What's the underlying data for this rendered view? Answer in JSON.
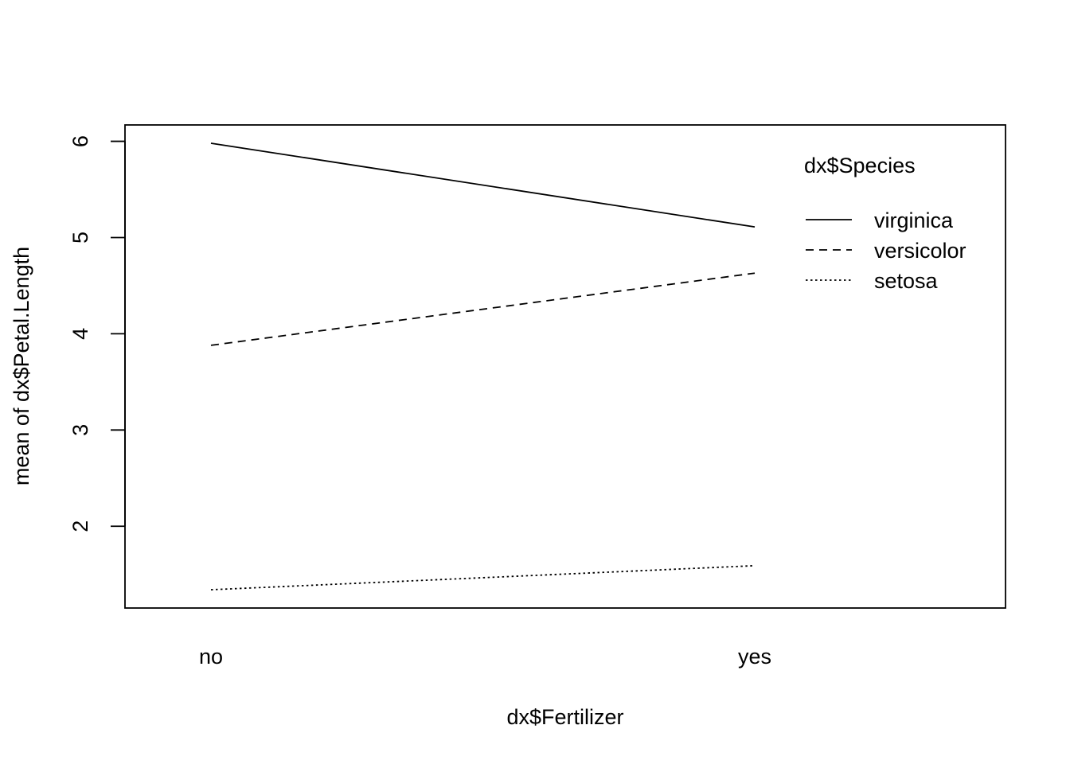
{
  "chart_data": {
    "type": "line",
    "title": "",
    "xlabel": "dx$Fertilizer",
    "ylabel": "mean of  dx$Petal.Length",
    "categories": [
      "no",
      "yes"
    ],
    "ylim": [
      1.15,
      6.17
    ],
    "yticks": [
      2,
      3,
      4,
      5,
      6
    ],
    "grid": false,
    "legend": {
      "title": "dx$Species",
      "placement": "top-right",
      "entries": [
        "virginica",
        "versicolor",
        "setosa"
      ]
    },
    "series": [
      {
        "name": "virginica",
        "values": [
          5.98,
          5.11
        ],
        "line_style": "solid"
      },
      {
        "name": "versicolor",
        "values": [
          3.88,
          4.63
        ],
        "line_style": "dashed"
      },
      {
        "name": "setosa",
        "values": [
          1.34,
          1.59
        ],
        "line_style": "dotted"
      }
    ]
  }
}
